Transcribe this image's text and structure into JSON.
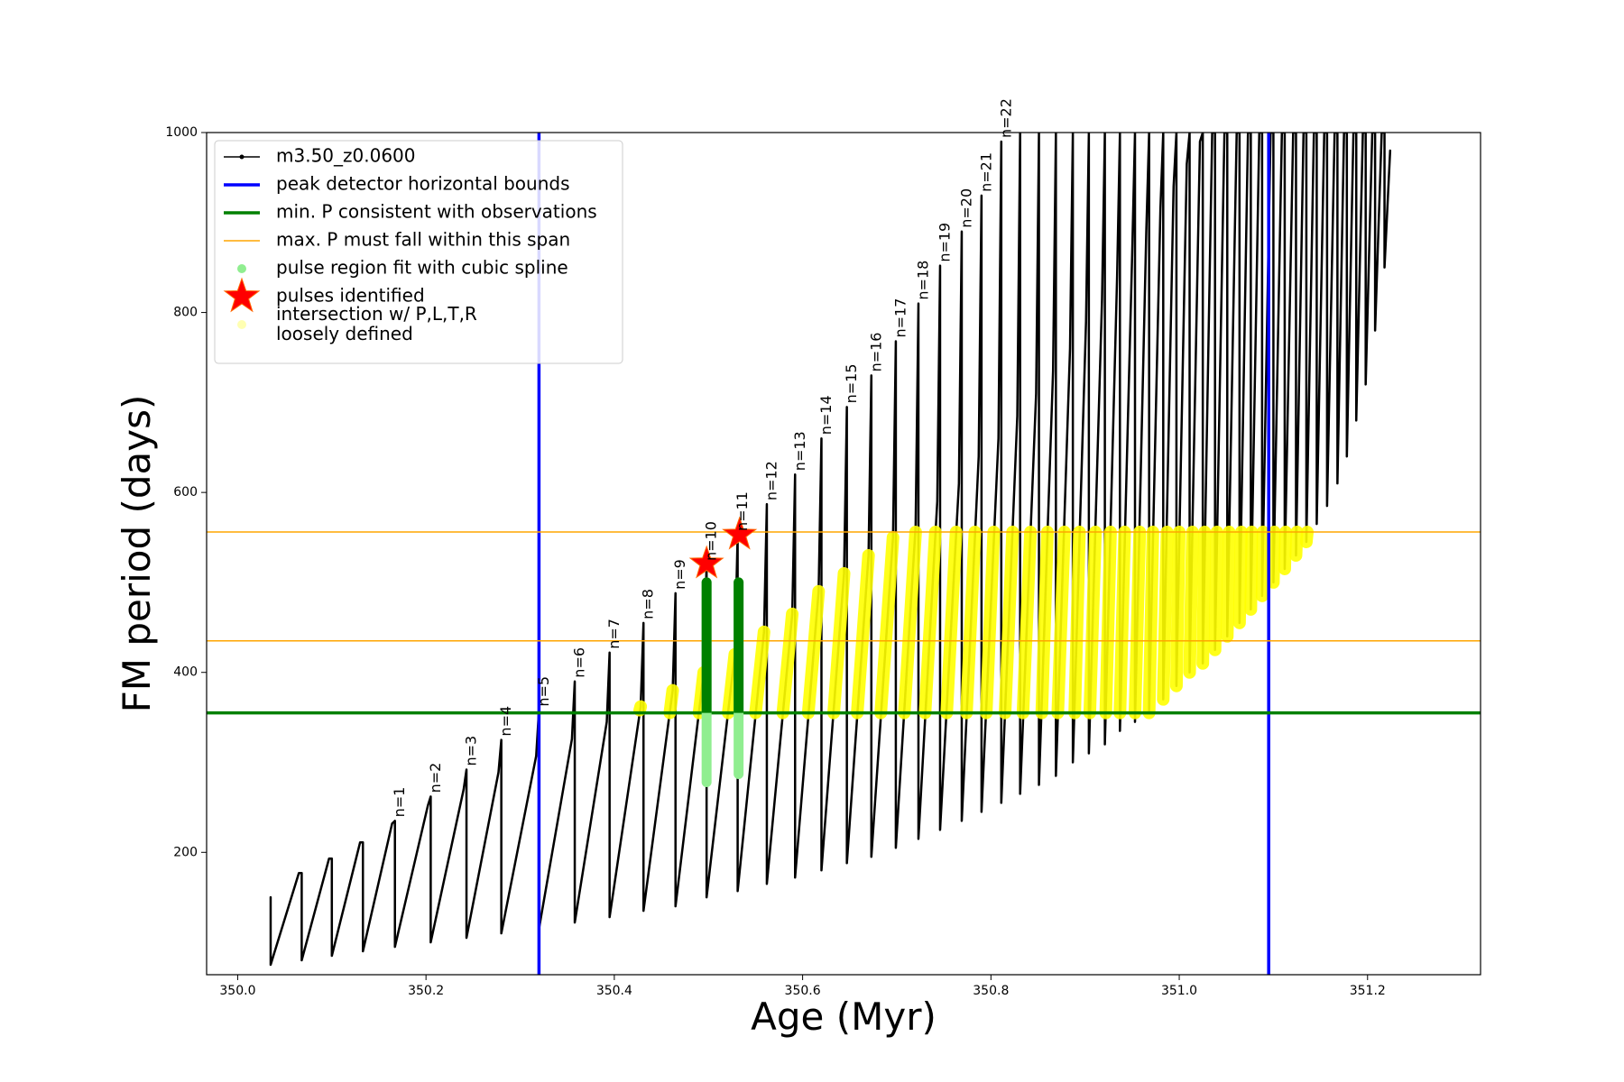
{
  "chart_data": {
    "type": "line",
    "xlabel": "Age (Myr)",
    "ylabel": "FM period (days)",
    "xlim": [
      349.967,
      351.32
    ],
    "ylim": [
      64,
      1000
    ],
    "xticks": [
      {
        "value": 350,
        "label": "350.0"
      },
      350.2,
      350.4,
      350.6,
      350.8,
      {
        "value": 351,
        "label": "351.0"
      },
      351.2
    ],
    "yticks": [
      200,
      400,
      600,
      800,
      1000
    ],
    "series": [
      {
        "name": "m3.50_z0.0600",
        "kind": "line",
        "color": "#000000",
        "linewidth": 2.5,
        "x": [
          350.035,
          350.035,
          350.065,
          350.068,
          350.068,
          350.097,
          350.1,
          350.1,
          350.13,
          350.133,
          350.133,
          350.164,
          350.167,
          350.167,
          350.202,
          350.205,
          350.205,
          350.24,
          350.243,
          350.243,
          350.277,
          350.28,
          350.28,
          350.317,
          350.32,
          350.32,
          350.355,
          350.358,
          350.358,
          350.392,
          350.395,
          350.395,
          350.428,
          350.431,
          350.431,
          350.462,
          350.465,
          350.465,
          350.495,
          350.498,
          350.498,
          350.528,
          350.531,
          350.531,
          350.559,
          350.562,
          350.562,
          350.589,
          350.592,
          350.592,
          350.617,
          350.62,
          350.62,
          350.644,
          350.647,
          350.647,
          350.67,
          350.673,
          350.673,
          350.696,
          350.699,
          350.699,
          350.72,
          350.723,
          350.723,
          350.743,
          350.746,
          350.746,
          350.766,
          350.769,
          350.769,
          350.787,
          350.79,
          350.79,
          350.808,
          350.811,
          350.811,
          350.828,
          350.831,
          350.831,
          350.848,
          350.851,
          350.851,
          350.866,
          350.869,
          350.869,
          350.884,
          350.887,
          350.887,
          350.901,
          350.904,
          350.904,
          350.918,
          350.921,
          350.921,
          350.934,
          350.937,
          350.937,
          350.95,
          350.953,
          350.953,
          350.965,
          350.968,
          350.968,
          350.98,
          350.983,
          350.983,
          350.994,
          350.997,
          350.997,
          351.008,
          351.011,
          351.011,
          351.022,
          351.025,
          351.025,
          351.035,
          351.038,
          351.038,
          351.048,
          351.051,
          351.051,
          351.061,
          351.064,
          351.064,
          351.073,
          351.076,
          351.076,
          351.085,
          351.088,
          351.088,
          351.097,
          351.1,
          351.1,
          351.109,
          351.112,
          351.112,
          351.121,
          351.124,
          351.124,
          351.132,
          351.135,
          351.135,
          351.143,
          351.146,
          351.146,
          351.154,
          351.157,
          351.157,
          351.165,
          351.168,
          351.168,
          351.175,
          351.178,
          351.178,
          351.185,
          351.188,
          351.188,
          351.195,
          351.198,
          351.198,
          351.205,
          351.208,
          351.208,
          351.215,
          351.218,
          351.218,
          351.224
        ],
        "values": [
          150,
          75,
          177,
          177,
          80,
          193,
          193,
          85,
          211,
          211,
          90,
          232,
          235,
          95,
          252,
          262,
          100,
          270,
          292,
          105,
          289,
          325,
          110,
          307,
          358,
          115,
          326,
          390,
          122,
          345,
          422,
          128,
          362,
          455,
          135,
          380,
          488,
          140,
          400,
          520,
          150,
          420,
          553,
          157,
          445,
          587,
          165,
          465,
          620,
          172,
          490,
          660,
          180,
          510,
          695,
          188,
          530,
          730,
          195,
          550,
          768,
          205,
          562,
          810,
          215,
          590,
          852,
          225,
          610,
          890,
          235,
          640,
          930,
          245,
          660,
          990,
          255,
          685,
          1000,
          265,
          710,
          1000,
          275,
          735,
          1000,
          285,
          760,
          1000,
          300,
          790,
          1000,
          310,
          815,
          1000,
          320,
          840,
          1000,
          335,
          865,
          1000,
          345,
          890,
          1000,
          355,
          915,
          1000,
          370,
          940,
          1000,
          385,
          965,
          1000,
          400,
          990,
          1000,
          410,
          1000,
          1000,
          425,
          1000,
          1000,
          440,
          1000,
          1000,
          455,
          1000,
          1000,
          470,
          1000,
          1000,
          485,
          1000,
          1000,
          500,
          1000,
          1000,
          515,
          1000,
          1000,
          530,
          1000,
          1000,
          545,
          1000,
          1000,
          565,
          1000,
          1000,
          585,
          1000,
          1000,
          610,
          1000,
          1000,
          640,
          1000,
          1000,
          680,
          1000,
          1000,
          720,
          1000,
          1000,
          780,
          1000,
          1000,
          850,
          980
        ]
      },
      {
        "name": "peak detector horizontal bounds",
        "kind": "vline",
        "color": "#0000ff",
        "linewidth": 3.5,
        "values": [
          350.32,
          351.095
        ]
      },
      {
        "name": "min. P consistent with observations",
        "kind": "hline",
        "color": "#008000",
        "linewidth": 3.5,
        "values": [
          355
        ]
      },
      {
        "name": "max. P must fall within this span",
        "kind": "hline",
        "color": "#ffa500",
        "linewidth": 1.5,
        "values": [
          435,
          556
        ]
      },
      {
        "name": "pulse region fit with cubic spline",
        "kind": "scatter",
        "color": "#90ee90",
        "linewidth": 11,
        "x": [
          350.498,
          350.498,
          null,
          350.532,
          350.532
        ],
        "values": [
          278,
          500,
          null,
          287,
          500
        ]
      },
      {
        "name": "pulses identified",
        "kind": "star",
        "color": "#ff0000",
        "x": [
          350.498,
          350.533
        ],
        "values": [
          521,
          553
        ]
      },
      {
        "name": "intersection w/ P,L,T,R\nloosely defined",
        "kind": "scatter",
        "color": "#ffff00",
        "linewidth": 14,
        "x": [
          350.427,
          350.428,
          null,
          350.459,
          350.462,
          null,
          350.49,
          350.495,
          null,
          350.521,
          350.528,
          null,
          350.55,
          350.559,
          null,
          350.579,
          350.589,
          null,
          350.606,
          350.617,
          null,
          350.633,
          350.644,
          null,
          350.658,
          350.67,
          null,
          350.683,
          350.696,
          null,
          350.708,
          350.72,
          null,
          350.73,
          350.741,
          null,
          350.753,
          350.763,
          null,
          350.774,
          350.783,
          null,
          350.795,
          350.803,
          null,
          350.815,
          350.823,
          null,
          350.834,
          350.842,
          null,
          350.854,
          350.86,
          null,
          350.871,
          350.878,
          null,
          350.889,
          350.894,
          null,
          350.905,
          350.911,
          null,
          350.922,
          350.927,
          null,
          350.937,
          350.942,
          null,
          350.953,
          350.958,
          null,
          350.968,
          350.972,
          null,
          350.983,
          350.987,
          null,
          350.997,
          351.0,
          null,
          351.011,
          351.014,
          null,
          351.025,
          351.027,
          null,
          351.038,
          351.04,
          null,
          351.051,
          351.053,
          null,
          351.064,
          351.066,
          null,
          351.076,
          351.077,
          null,
          351.088,
          351.089,
          null,
          351.1,
          351.101,
          null,
          351.112,
          351.113,
          null,
          351.124,
          351.125,
          null,
          351.135,
          351.136
        ],
        "values": [
          358,
          362,
          null,
          355,
          380,
          null,
          355,
          400,
          null,
          355,
          420,
          null,
          355,
          445,
          null,
          355,
          465,
          null,
          355,
          490,
          null,
          355,
          510,
          null,
          355,
          530,
          null,
          355,
          550,
          null,
          355,
          556,
          null,
          355,
          556,
          null,
          355,
          556,
          null,
          355,
          556,
          null,
          355,
          556,
          null,
          355,
          556,
          null,
          355,
          556,
          null,
          355,
          556,
          null,
          355,
          556,
          null,
          355,
          556,
          null,
          355,
          556,
          null,
          355,
          556,
          null,
          355,
          556,
          null,
          355,
          556,
          null,
          355,
          556,
          null,
          370,
          556,
          null,
          385,
          556,
          null,
          400,
          556,
          null,
          410,
          556,
          null,
          425,
          556,
          null,
          440,
          556,
          null,
          455,
          556,
          null,
          470,
          556,
          null,
          485,
          556,
          null,
          500,
          556,
          null,
          515,
          556,
          null,
          530,
          556,
          null,
          545,
          556
        ]
      }
    ],
    "annotations": [
      {
        "text": "n=1",
        "x": 350.167,
        "y": 235
      },
      {
        "text": "n=2",
        "x": 350.205,
        "y": 262
      },
      {
        "text": "n=3",
        "x": 350.243,
        "y": 292
      },
      {
        "text": "n=4",
        "x": 350.28,
        "y": 325
      },
      {
        "text": "n=5",
        "x": 350.32,
        "y": 358
      },
      {
        "text": "n=6",
        "x": 350.358,
        "y": 390
      },
      {
        "text": "n=7",
        "x": 350.395,
        "y": 422
      },
      {
        "text": "n=8",
        "x": 350.431,
        "y": 455
      },
      {
        "text": "n=9",
        "x": 350.465,
        "y": 488
      },
      {
        "text": "n=10",
        "x": 350.498,
        "y": 520
      },
      {
        "text": "n=11",
        "x": 350.531,
        "y": 553
      },
      {
        "text": "n=12",
        "x": 350.562,
        "y": 587
      },
      {
        "text": "n=13",
        "x": 350.592,
        "y": 620
      },
      {
        "text": "n=14",
        "x": 350.62,
        "y": 660
      },
      {
        "text": "n=15",
        "x": 350.647,
        "y": 695
      },
      {
        "text": "n=16",
        "x": 350.673,
        "y": 730
      },
      {
        "text": "n=17",
        "x": 350.699,
        "y": 768
      },
      {
        "text": "n=18",
        "x": 350.723,
        "y": 810
      },
      {
        "text": "n=19",
        "x": 350.746,
        "y": 852
      },
      {
        "text": "n=20",
        "x": 350.769,
        "y": 890
      },
      {
        "text": "n=21",
        "x": 350.79,
        "y": 930
      },
      {
        "text": "n=22",
        "x": 350.811,
        "y": 990
      }
    ]
  }
}
